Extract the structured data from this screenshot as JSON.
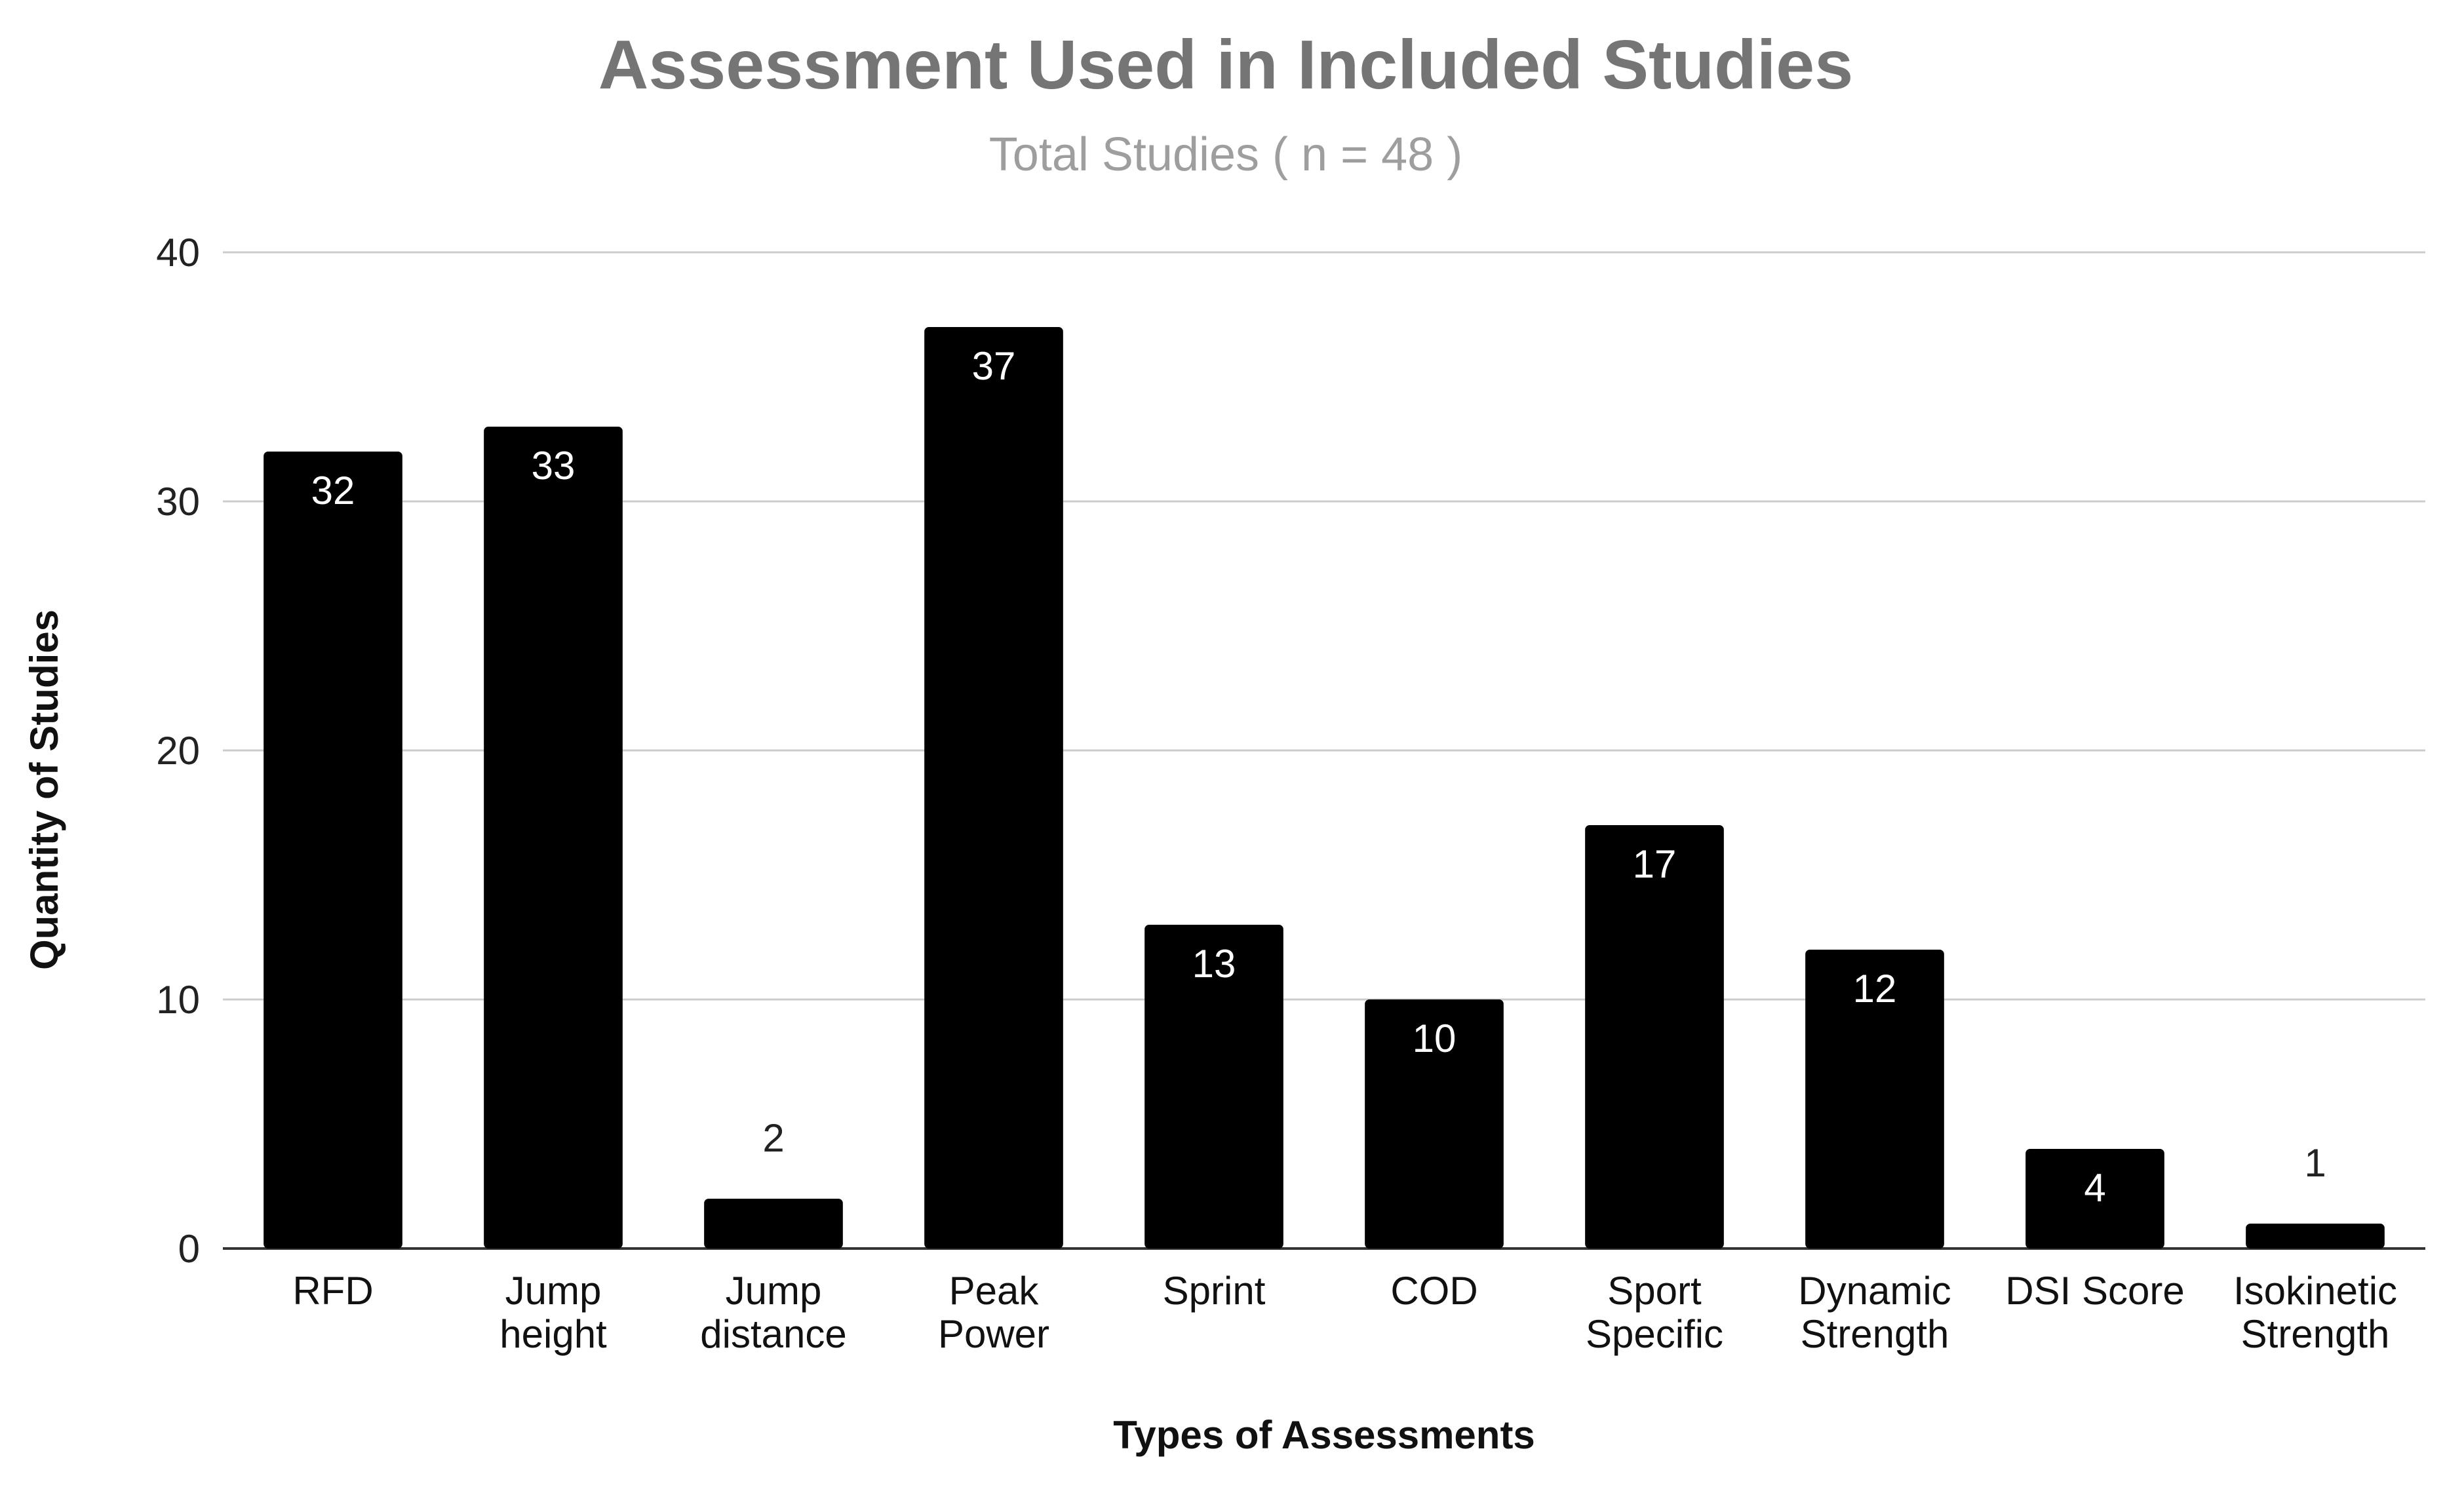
{
  "chart_data": {
    "type": "bar",
    "title": "Assessment Used in Included Studies",
    "subtitle": "Total Studies ( n = 48 )",
    "xlabel": "Types of Assessments",
    "ylabel": "Quantity of Studies",
    "categories": [
      [
        "RFD"
      ],
      [
        "Jump",
        "height"
      ],
      [
        "Jump",
        "distance"
      ],
      [
        "Peak",
        "Power"
      ],
      [
        "Sprint"
      ],
      [
        "COD"
      ],
      [
        "Sport",
        "Specific"
      ],
      [
        "Dynamic",
        "Strength"
      ],
      [
        "DSI Score"
      ],
      [
        "Isokinetic",
        "Strength"
      ]
    ],
    "values": [
      32,
      33,
      2,
      37,
      13,
      10,
      17,
      12,
      4,
      1
    ],
    "ylim": [
      0,
      40
    ],
    "yticks": [
      0,
      10,
      20,
      30,
      40
    ],
    "grid": true,
    "legend": "none",
    "colors": {
      "bar": "#000000",
      "grid": "#cccccc",
      "axis": "#333333",
      "label_inside": "#ffffff",
      "label_outside": "#222222"
    }
  }
}
